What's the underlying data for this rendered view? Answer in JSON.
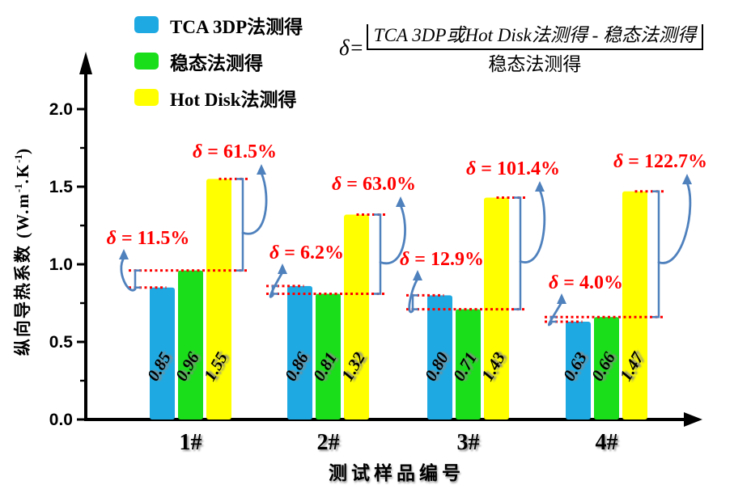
{
  "chart_data": {
    "type": "bar",
    "categories": [
      "1#",
      "2#",
      "3#",
      "4#"
    ],
    "series": [
      {
        "name": "TCA 3DP法测得",
        "color": "#1FA9E2",
        "values": [
          0.85,
          0.86,
          0.8,
          0.63
        ]
      },
      {
        "name": "稳态法测得",
        "color": "#1ADE1A",
        "values": [
          0.96,
          0.81,
          0.71,
          0.66
        ]
      },
      {
        "name": "Hot Disk法测得",
        "color": "#FFFF00",
        "values": [
          1.55,
          1.32,
          1.43,
          1.47
        ]
      }
    ],
    "xlabel": "测试样品编号",
    "ylabel": "纵向导热系数 (W.m⁻¹.K⁻¹)",
    "yticks": [
      "0.0",
      "0.5",
      "1.0",
      "1.5",
      "2.0"
    ],
    "ylim": [
      0,
      2.3
    ],
    "grid": false,
    "legend_position": "top-left",
    "annotations": [
      {
        "category": "1#",
        "small": "δ = 11.5%",
        "large": "δ = 61.5%"
      },
      {
        "category": "2#",
        "small": "δ = 6.2%",
        "large": "δ = 63.0%"
      },
      {
        "category": "3#",
        "small": "δ = 12.9%",
        "large": "δ = 101.4%"
      },
      {
        "category": "4#",
        "small": "δ = 4.0%",
        "large": "δ = 122.7%"
      }
    ]
  },
  "formula": {
    "lhs": "δ=",
    "numerator": "TCA 3DP或Hot Disk法测得 - 稳态法测得",
    "denominator": "稳态法测得"
  },
  "ylabel_parts": {
    "pre": "纵向导热系数 (W.m",
    "sup1": "-1",
    "mid": ".K",
    "sup2": "-1",
    "post": ")"
  },
  "colors": {
    "annotation_red": "#FF0000",
    "arrow_blue": "#4F81BD",
    "axis_black": "#000000"
  }
}
